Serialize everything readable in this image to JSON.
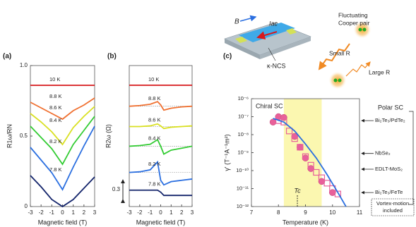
{
  "chart_data": [
    {
      "type": "line",
      "panel_label": "(a)",
      "ylabel": "R1ω/RN",
      "xlabel": "Magnetic field (T)",
      "x": [
        -3,
        -2,
        -1,
        0,
        1,
        2,
        3
      ],
      "series": [
        {
          "name": "10 K",
          "color": "#d7191c",
          "values": [
            0.86,
            0.86,
            0.86,
            0.86,
            0.86,
            0.86,
            0.86
          ]
        },
        {
          "name": "8.8 K",
          "color": "#f07030",
          "values": [
            0.74,
            0.7,
            0.66,
            0.62,
            0.68,
            0.72,
            0.77
          ]
        },
        {
          "name": "8.6 K",
          "color": "#d9e021",
          "values": [
            0.66,
            0.6,
            0.53,
            0.44,
            0.56,
            0.64,
            0.71
          ]
        },
        {
          "name": "8.4 K",
          "color": "#33cc33",
          "values": [
            0.57,
            0.49,
            0.41,
            0.3,
            0.44,
            0.54,
            0.64
          ]
        },
        {
          "name": "8.2 K",
          "color": "#2b6fe0",
          "values": [
            0.42,
            0.33,
            0.24,
            0.12,
            0.28,
            0.43,
            0.57
          ]
        },
        {
          "name": "7.8 K",
          "color": "#13246b",
          "values": [
            0.22,
            0.14,
            0.05,
            0,
            0.05,
            0.13,
            0.21
          ]
        }
      ],
      "xlim": [
        -3,
        3
      ],
      "xticks": [
        -3,
        -2,
        -1,
        0,
        1,
        2,
        3
      ],
      "ylim": [
        0,
        1
      ],
      "yticks": [
        0,
        0.5,
        {
          "value": 1,
          "label": "1.0"
        }
      ]
    },
    {
      "type": "line",
      "panel_label": "(b)",
      "ylabel": "R2ω (Ω)",
      "xlabel": "Magnetic field (T)",
      "x": [
        -3,
        -2,
        -1,
        -0.3,
        0,
        0.3,
        1,
        2,
        3
      ],
      "series": [
        {
          "name": "10 K",
          "color": "#d7191c",
          "values": [
            1.85,
            1.85,
            1.85,
            1.85,
            1.85,
            1.85,
            1.85,
            1.85,
            1.85
          ]
        },
        {
          "name": "8.8 K",
          "color": "#f07030",
          "values": [
            1.53,
            1.54,
            1.56,
            1.6,
            1.55,
            1.47,
            1.5,
            1.52,
            1.53
          ]
        },
        {
          "name": "8.6 K",
          "color": "#d9e021",
          "values": [
            1.22,
            1.22,
            1.23,
            1.26,
            1.23,
            1.19,
            1.21,
            1.22,
            1.23
          ]
        },
        {
          "name": "8.4 K",
          "color": "#33cc33",
          "values": [
            0.92,
            0.93,
            0.95,
            1.02,
            0.92,
            0.8,
            0.86,
            0.89,
            0.92
          ]
        },
        {
          "name": "8.2 K",
          "color": "#2b6fe0",
          "values": [
            0.52,
            0.53,
            0.56,
            0.68,
            0.4,
            0.33,
            0.38,
            0.4,
            0.42
          ]
        },
        {
          "name": "7.8 K",
          "color": "#13246b",
          "values": [
            0.25,
            0.25,
            0.25,
            0.25,
            0.22,
            0.17,
            0.17,
            0.17,
            0.17
          ]
        }
      ],
      "baselines": [
        1.53,
        1.22,
        0.92,
        0.52
      ],
      "scale_bar": 0.3,
      "xlim": [
        -3,
        3
      ],
      "xticks": [
        -3,
        -2,
        -1,
        0,
        1,
        2,
        3
      ],
      "ylim": [
        0,
        2.15
      ]
    },
    {
      "type": "scatter",
      "panel_label": "(c)",
      "ylabel": "γ' (T⁻¹A⁻¹m²)",
      "xlabel": "Temperature (K)",
      "log_y": true,
      "annotation": "Chiral SC",
      "tc": 8.7,
      "tc_label": "Tc",
      "shaded_range": [
        8.2,
        9.6
      ],
      "series": [
        {
          "marker": "circle",
          "color": "#e8609a",
          "x": [
            7.8,
            8.0,
            8.2,
            8.6,
            8.8,
            9.0,
            9.2,
            9.6,
            10.0
          ],
          "values": [
            5e-08,
            1e-07,
            9e-08,
            8e-09,
            2e-09,
            5e-10,
            1.3e-10,
            2.5e-11,
            6e-12
          ]
        },
        {
          "marker": "square",
          "color": "#e8609a",
          "x": [
            8.0,
            8.2,
            8.4,
            8.6,
            8.8,
            9.0,
            9.2,
            9.4,
            9.6,
            9.8,
            10.0,
            10.2
          ],
          "values": [
            6e-08,
            5e-08,
            1.6e-08,
            6e-09,
            2e-09,
            6e-10,
            2e-10,
            8e-11,
            4e-11,
            2e-11,
            1e-11,
            5e-12
          ]
        },
        {
          "marker": "line",
          "color": "#2b6fe0",
          "x": [
            7.8,
            8.2,
            8.6,
            9.0,
            9.4,
            9.8,
            10.2,
            10.5
          ],
          "values": [
            8e-08,
            5e-08,
            1.6e-08,
            3e-09,
            5e-10,
            6e-11,
            6e-12,
            1e-12
          ]
        }
      ],
      "references_title": "Polar SC",
      "references": [
        {
          "name": "Bi₂Te₃/PdTe₂",
          "value": 6e-08
        },
        {
          "name": "NbSe₂",
          "value": 9e-10
        },
        {
          "name": "EDLT-MoS₂",
          "value": 1.2e-10
        },
        {
          "name": "Bi₂Te₃/FeTe",
          "value": 6e-12
        }
      ],
      "vortex_note": [
        "Vortex-motion",
        "included"
      ],
      "xlim": [
        7,
        11
      ],
      "xticks": [
        7,
        8,
        9,
        10,
        11
      ],
      "ylim": [
        1e-12,
        1e-06
      ],
      "yticks": [
        {
          "value": 1e-12,
          "label": "10⁻¹²"
        },
        {
          "value": 1e-11,
          "label": "10⁻¹¹"
        },
        {
          "value": 1e-10,
          "label": "10⁻¹⁰"
        },
        {
          "value": 1e-09,
          "label": "10⁻⁹"
        },
        {
          "value": 1e-08,
          "label": "10⁻⁸"
        },
        {
          "value": 1e-07,
          "label": "10⁻⁷"
        },
        {
          "value": 1e-06,
          "label": "10⁻⁶"
        }
      ],
      "schematic": {
        "field": "B",
        "current": "Iac",
        "material": "κ-NCS",
        "pair": [
          "Fluctuating",
          "Cooper pair"
        ],
        "small": "Small R",
        "large": "Large R"
      }
    }
  ]
}
